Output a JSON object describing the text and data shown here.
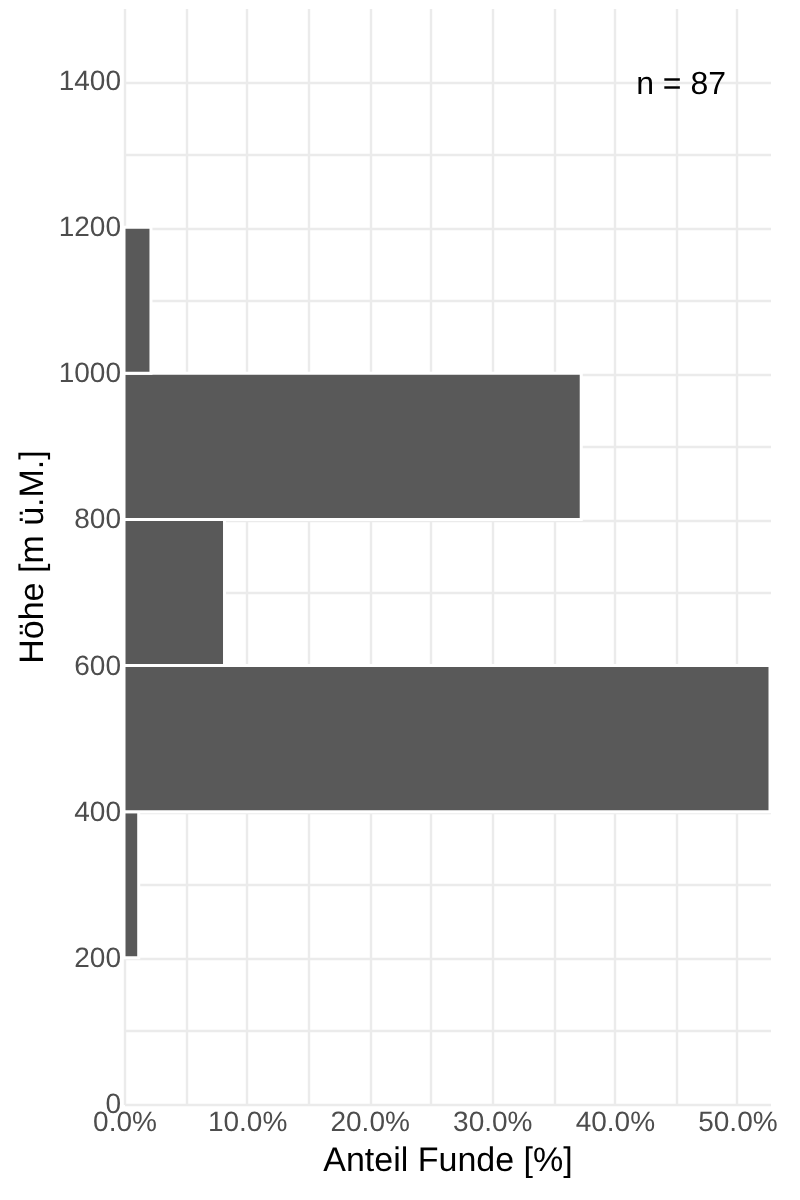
{
  "chart_data": {
    "type": "histogram",
    "orientation": "horizontal",
    "xlabel": "Anteil Funde [%]",
    "ylabel": "Höhe [m ü.M.]",
    "bins": [
      200,
      400,
      600,
      800,
      1000,
      1200
    ],
    "values": [
      1.2,
      52.7,
      8.2,
      37.3,
      2.2
    ],
    "color": "#595959",
    "xlim": [
      0,
      52.7
    ],
    "xticks": [
      {
        "value": 0,
        "label": "0.0%"
      },
      {
        "value": 5,
        "label": null
      },
      {
        "value": 10,
        "label": "10.0%"
      },
      {
        "value": 15,
        "label": null
      },
      {
        "value": 20,
        "label": "20.0%"
      },
      {
        "value": 25,
        "label": null
      },
      {
        "value": 30,
        "label": "30.0%"
      },
      {
        "value": 35,
        "label": null
      },
      {
        "value": 40,
        "label": "40.0%"
      },
      {
        "value": 45,
        "label": null
      },
      {
        "value": 50,
        "label": "50.0%"
      }
    ],
    "ylim": [
      0,
      1500
    ],
    "yticks": [
      0,
      {
        "value": 100,
        "label": null
      },
      200,
      {
        "value": 300,
        "label": null
      },
      400,
      600,
      {
        "value": 700,
        "label": null
      },
      800,
      {
        "value": 900,
        "label": null
      },
      1000,
      {
        "value": 1100,
        "label": null
      },
      1200,
      {
        "value": 1300,
        "label": null
      },
      1400
    ],
    "grid": true,
    "annotations": [
      "n = 87"
    ]
  }
}
